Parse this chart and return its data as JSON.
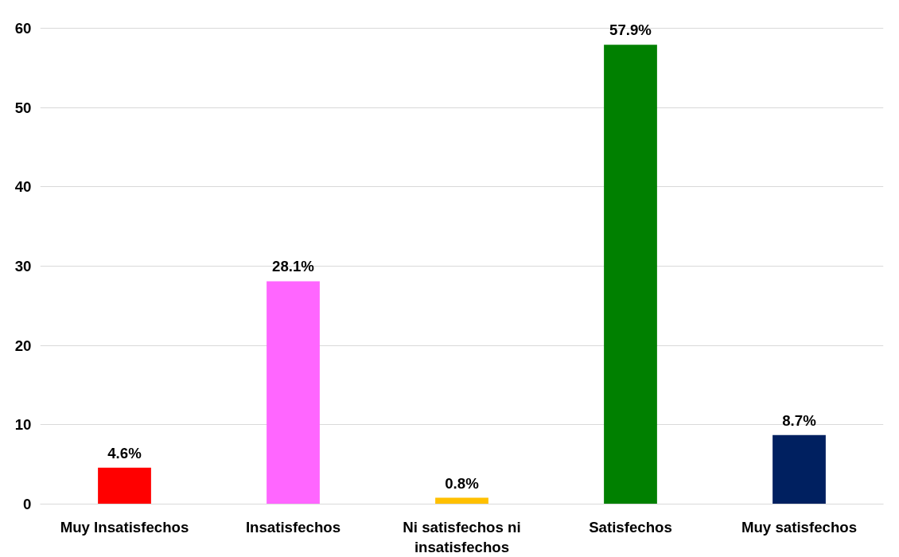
{
  "chart_data": {
    "type": "bar",
    "categories": [
      "Muy Insatisfechos",
      "Insatisfechos",
      "Ni satisfechos ni insatisfechos",
      "Satisfechos",
      "Muy satisfechos"
    ],
    "values": [
      4.6,
      28.1,
      0.8,
      57.9,
      8.7
    ],
    "colors": [
      "#ff0000",
      "#ff66ff",
      "#ffc000",
      "#008000",
      "#002060"
    ],
    "value_labels": [
      "4.6%",
      "28.1%",
      "0.8%",
      "57.9%",
      "8.7%"
    ],
    "ylim": [
      0,
      60
    ],
    "yticks": [
      0,
      10,
      20,
      30,
      40,
      50,
      60
    ],
    "grid": "y"
  }
}
